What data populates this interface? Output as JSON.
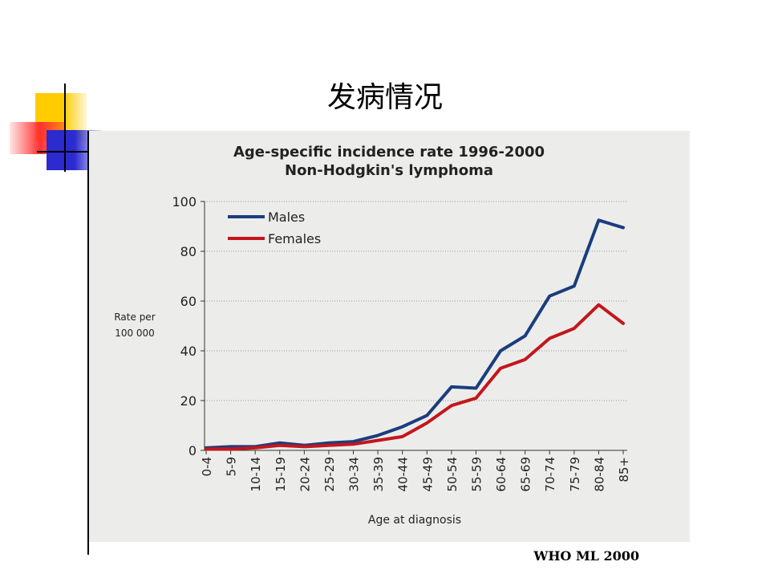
{
  "slide": {
    "title": "发病情况",
    "source": "WHO ML 2000"
  },
  "colors": {
    "males": "#1b3d7e",
    "females": "#c4161c",
    "panel": "#ecedeb",
    "grid": "#9a9a9a",
    "axis": "#333333"
  },
  "chart_data": {
    "type": "line",
    "title": "Age-specific incidence rate 1996-2000",
    "subtitle": "Non-Hodgkin's lymphoma",
    "xlabel": "Age at diagnosis",
    "ylabel_line1": "Rate per",
    "ylabel_line2": "100 000",
    "ylim": [
      0,
      100
    ],
    "yticks": [
      0,
      20,
      40,
      60,
      80,
      100
    ],
    "grid": true,
    "legend_position": "top-left",
    "categories": [
      "0-4",
      "5-9",
      "10-14",
      "15-19",
      "20-24",
      "25-29",
      "30-34",
      "35-39",
      "40-44",
      "45-49",
      "50-54",
      "55-59",
      "60-64",
      "65-69",
      "70-74",
      "75-79",
      "80-84",
      "85+"
    ],
    "series": [
      {
        "name": "Males",
        "values": [
          1,
          1.5,
          1.5,
          3,
          2,
          3,
          3.5,
          6,
          9.5,
          14,
          25.5,
          25,
          40,
          46,
          62,
          66,
          92.5,
          89.5
        ]
      },
      {
        "name": "Females",
        "values": [
          0.5,
          0.5,
          1,
          2,
          1.5,
          2,
          2.5,
          4,
          5.5,
          11,
          18,
          21,
          33,
          36.5,
          45,
          49,
          58.5,
          51
        ]
      }
    ]
  }
}
